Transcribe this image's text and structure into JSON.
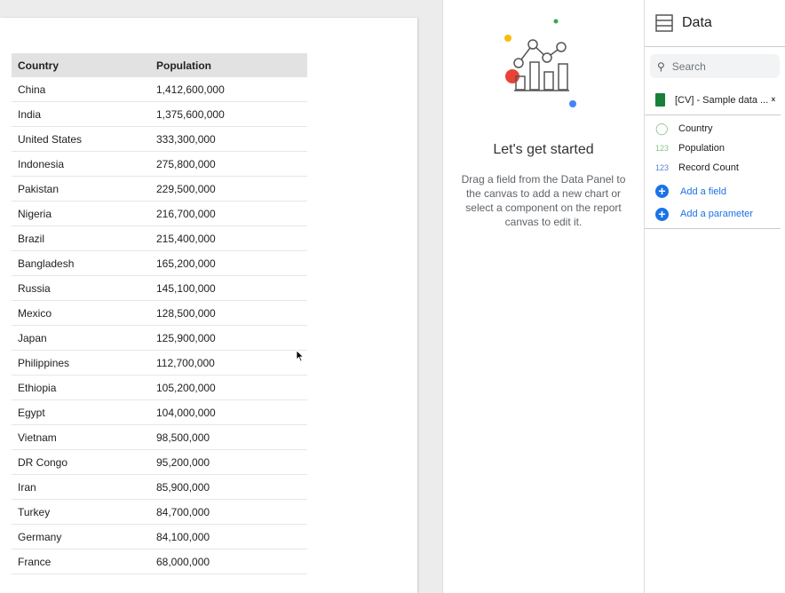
{
  "table": {
    "headers": [
      "Country",
      "Population"
    ],
    "rows": [
      [
        "China",
        "1,412,600,000"
      ],
      [
        "India",
        "1,375,600,000"
      ],
      [
        "United States",
        "333,300,000"
      ],
      [
        "Indonesia",
        "275,800,000"
      ],
      [
        "Pakistan",
        "229,500,000"
      ],
      [
        "Nigeria",
        "216,700,000"
      ],
      [
        "Brazil",
        "215,400,000"
      ],
      [
        "Bangladesh",
        "165,200,000"
      ],
      [
        "Russia",
        "145,100,000"
      ],
      [
        "Mexico",
        "128,500,000"
      ],
      [
        "Japan",
        "125,900,000"
      ],
      [
        "Philippines",
        "112,700,000"
      ],
      [
        "Ethiopia",
        "105,200,000"
      ],
      [
        "Egypt",
        "104,000,000"
      ],
      [
        "Vietnam",
        "98,500,000"
      ],
      [
        "DR Congo",
        "95,200,000"
      ],
      [
        "Iran",
        "85,900,000"
      ],
      [
        "Turkey",
        "84,700,000"
      ],
      [
        "Germany",
        "84,100,000"
      ],
      [
        "France",
        "68,000,000"
      ]
    ]
  },
  "empty_state": {
    "title": "Let's get started",
    "body": "Drag a field from the Data Panel to the canvas to add a new chart or select a component on the report canvas to edit it."
  },
  "data_panel": {
    "title": "Data",
    "search_placeholder": "Search",
    "source": "[CV] - Sample data ...",
    "fields": [
      {
        "type": "geo",
        "label": "Country"
      },
      {
        "type": "123",
        "label": "Population"
      },
      {
        "type": "123",
        "label": "Record Count"
      }
    ],
    "add_field": "Add a field",
    "add_parameter": "Add a parameter"
  }
}
